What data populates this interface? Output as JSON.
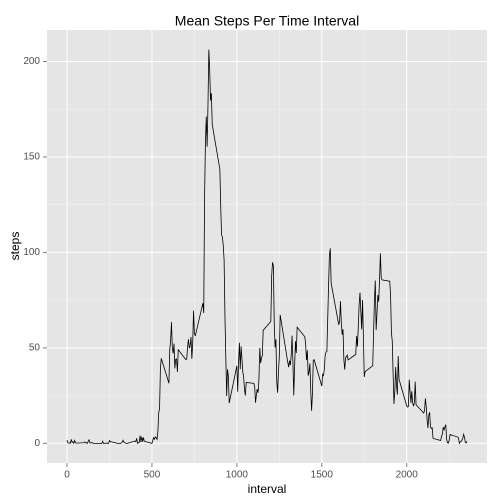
{
  "chart_data": {
    "type": "line",
    "title": "Mean Steps Per Time Interval",
    "x_label": "interval",
    "y_label": "steps",
    "x": [
      0,
      5,
      10,
      15,
      20,
      25,
      30,
      35,
      40,
      45,
      50,
      55,
      100,
      105,
      110,
      115,
      120,
      125,
      130,
      135,
      140,
      145,
      150,
      155,
      200,
      205,
      210,
      215,
      220,
      225,
      230,
      235,
      240,
      245,
      250,
      255,
      300,
      305,
      310,
      315,
      320,
      325,
      330,
      335,
      340,
      345,
      350,
      355,
      400,
      405,
      410,
      415,
      420,
      425,
      430,
      435,
      440,
      445,
      450,
      455,
      500,
      505,
      510,
      515,
      520,
      525,
      530,
      535,
      540,
      545,
      550,
      555,
      600,
      605,
      610,
      615,
      620,
      625,
      630,
      635,
      640,
      645,
      650,
      655,
      700,
      705,
      710,
      715,
      720,
      725,
      730,
      735,
      740,
      745,
      750,
      755,
      800,
      805,
      810,
      815,
      820,
      825,
      830,
      835,
      840,
      845,
      850,
      855,
      900,
      905,
      910,
      915,
      920,
      925,
      930,
      935,
      940,
      945,
      950,
      955,
      1000,
      1005,
      1010,
      1015,
      1020,
      1025,
      1030,
      1035,
      1040,
      1045,
      1050,
      1055,
      1100,
      1105,
      1110,
      1115,
      1120,
      1125,
      1130,
      1135,
      1140,
      1145,
      1150,
      1155,
      1200,
      1205,
      1210,
      1215,
      1220,
      1225,
      1230,
      1235,
      1240,
      1245,
      1250,
      1255,
      1300,
      1305,
      1310,
      1315,
      1320,
      1325,
      1330,
      1335,
      1340,
      1345,
      1350,
      1355,
      1400,
      1405,
      1410,
      1415,
      1420,
      1425,
      1430,
      1435,
      1440,
      1445,
      1450,
      1455,
      1500,
      1505,
      1510,
      1515,
      1520,
      1525,
      1530,
      1535,
      1540,
      1545,
      1550,
      1555,
      1600,
      1605,
      1610,
      1615,
      1620,
      1625,
      1630,
      1635,
      1640,
      1645,
      1650,
      1655,
      1700,
      1705,
      1710,
      1715,
      1720,
      1725,
      1730,
      1735,
      1740,
      1745,
      1750,
      1755,
      1800,
      1805,
      1810,
      1815,
      1820,
      1825,
      1830,
      1835,
      1840,
      1845,
      1850,
      1855,
      1900,
      1905,
      1910,
      1915,
      1920,
      1925,
      1930,
      1935,
      1940,
      1945,
      1950,
      1955,
      2000,
      2005,
      2010,
      2015,
      2020,
      2025,
      2030,
      2035,
      2040,
      2045,
      2050,
      2055,
      2100,
      2105,
      2110,
      2115,
      2120,
      2125,
      2130,
      2135,
      2140,
      2145,
      2150,
      2155,
      2200,
      2205,
      2210,
      2215,
      2220,
      2225,
      2230,
      2235,
      2240,
      2245,
      2250,
      2255,
      2300,
      2305,
      2310,
      2315,
      2320,
      2325,
      2330,
      2335,
      2340,
      2345,
      2350,
      2355
    ],
    "series": [
      {
        "name": "steps",
        "color": "#000000",
        "values": [
          1.7,
          0.3,
          0.1,
          0.2,
          0.1,
          2.1,
          0.5,
          0.9,
          0,
          1.5,
          0.3,
          0.1,
          0.3,
          0.7,
          0.2,
          0.3,
          0,
          1.1,
          1.8,
          0.2,
          0.2,
          0.4,
          0.3,
          0,
          0,
          0,
          1.1,
          0,
          0,
          0.1,
          0,
          0.2,
          0,
          0,
          1.5,
          0.9,
          0,
          0,
          0,
          0,
          0.2,
          0.6,
          1.6,
          0.6,
          0.5,
          0.1,
          0,
          0,
          1.2,
          0.9,
          2.6,
          0,
          0.3,
          0.4,
          4.1,
          0.7,
          3.5,
          0.8,
          3.1,
          1.1,
          0,
          1.6,
          3,
          2.2,
          3.3,
          3,
          2.1,
          6.1,
          16,
          18.3,
          39.5,
          44.5,
          31.5,
          49.3,
          53.8,
          63.5,
          50,
          47.1,
          52.2,
          39.3,
          44,
          44.2,
          37.4,
          49,
          43.8,
          44.4,
          50.5,
          54.5,
          49.9,
          51,
          55.7,
          44.3,
          52.3,
          69.5,
          57.8,
          56.2,
          73.4,
          68.2,
          129.4,
          157.5,
          171.2,
          155.4,
          177.3,
          206.2,
          195.9,
          179.6,
          183.4,
          167,
          143.5,
          124,
          109.1,
          108.1,
          103.7,
          95.9,
          66.2,
          45.2,
          24.8,
          38.8,
          35,
          21.1,
          40.6,
          27,
          42.4,
          52.7,
          38.9,
          50.8,
          44.3,
          37.4,
          34.7,
          28.3,
          25.1,
          31.9,
          31.4,
          29.7,
          21.3,
          25.5,
          28.4,
          26.5,
          33.4,
          50,
          42,
          44.6,
          46,
          59.2,
          63.9,
          87.7,
          94.8,
          92.8,
          63.4,
          50.2,
          54.5,
          32.4,
          26.5,
          37.7,
          45.1,
          67.3,
          42.3,
          39.9,
          43.3,
          41,
          46.2,
          56.4,
          42.8,
          25.1,
          40,
          53.5,
          47.3,
          60.8,
          55.8,
          52,
          43.6,
          48.7,
          35.5,
          37.5,
          41.8,
          27.5,
          17.1,
          26.1,
          43.6,
          43.8,
          30,
          36.1,
          35.5,
          38.8,
          46,
          47.8,
          48.1,
          65.3,
          82.9,
          98.7,
          102.1,
          84,
          62.1,
          64.1,
          74.5,
          63.2,
          56.9,
          59.8,
          43.9,
          38.6,
          44.7,
          45.5,
          46.2,
          43.7,
          46.6,
          56.3,
          50.7,
          61.2,
          72.7,
          78.9,
          68.9,
          59.7,
          75.1,
          56.5,
          34.8,
          37.5,
          40.7,
          58,
          74.7,
          85.3,
          59.3,
          67.8,
          77.7,
          74.2,
          85.3,
          99.5,
          86.6,
          85.6,
          84.9,
          77.8,
          58,
          53.4,
          36.3,
          20.7,
          27.4,
          40,
          30.2,
          25.5,
          45.7,
          33.5,
          19.6,
          19,
          19.3,
          33.3,
          26.8,
          21.2,
          27.3,
          21.3,
          19.5,
          21.3,
          32.3,
          20.2,
          15.9,
          17.2,
          23.5,
          19.2,
          12.5,
          8,
          14.7,
          16.3,
          8.7,
          7.8,
          8.1,
          2.6,
          1.5,
          3.7,
          4.8,
          8.5,
          7.1,
          8.7,
          9.8,
          2.2,
          0.3,
          0.1,
          1.6,
          4.6,
          3.3,
          2.8,
          0,
          0.8,
          1,
          1.6,
          2.6,
          4.7,
          3.3,
          0.6,
          0.2,
          1.1
        ]
      }
    ],
    "xlim": [
      -117.75,
      2472.75
    ],
    "ylim": [
      -10.3,
      216.5
    ],
    "xticks": [
      0,
      500,
      1000,
      1500,
      2000
    ],
    "yticks": [
      0,
      50,
      100,
      150,
      200
    ],
    "x_minor_grid": [
      250,
      750,
      1250,
      1750,
      2250
    ],
    "y_minor_grid": [
      25,
      75,
      125,
      175
    ],
    "grid": true
  }
}
